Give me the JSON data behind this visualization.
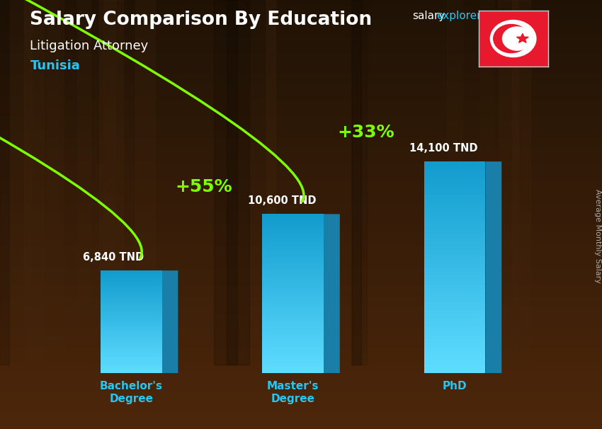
{
  "title": "Salary Comparison By Education",
  "subtitle1": "Litigation Attorney",
  "subtitle2": "Tunisia",
  "ylabel": "Average Monthly Salary",
  "categories": [
    "Bachelor's\nDegree",
    "Master's\nDegree",
    "PhD"
  ],
  "values": [
    6840,
    10600,
    14100
  ],
  "value_labels": [
    "6,840 TND",
    "10,600 TND",
    "14,100 TND"
  ],
  "pct_labels": [
    "+55%",
    "+33%"
  ],
  "bar_color_front": "#29c5f0",
  "bar_color_side": "#1a7fa8",
  "bar_color_top": "#5dd8f8",
  "arrow_color": "#7dff00",
  "bg_color": "#1c1008",
  "title_color": "#ffffff",
  "subtitle1_color": "#ffffff",
  "subtitle2_color": "#29c5f0",
  "value_color": "#ffffff",
  "pct_color": "#7dff00",
  "xticklabel_color": "#29c5f0",
  "brand_color_salary": "#ffffff",
  "brand_color_explorer": "#29c5f0",
  "brand_color_com": "#ffffff",
  "ylabel_color": "#aaaaaa",
  "ylim_max": 18000,
  "bar_width": 0.38,
  "x_positions": [
    1.0,
    2.0,
    3.0
  ],
  "flag_color": "#e8192c",
  "flag_white": "#ffffff"
}
